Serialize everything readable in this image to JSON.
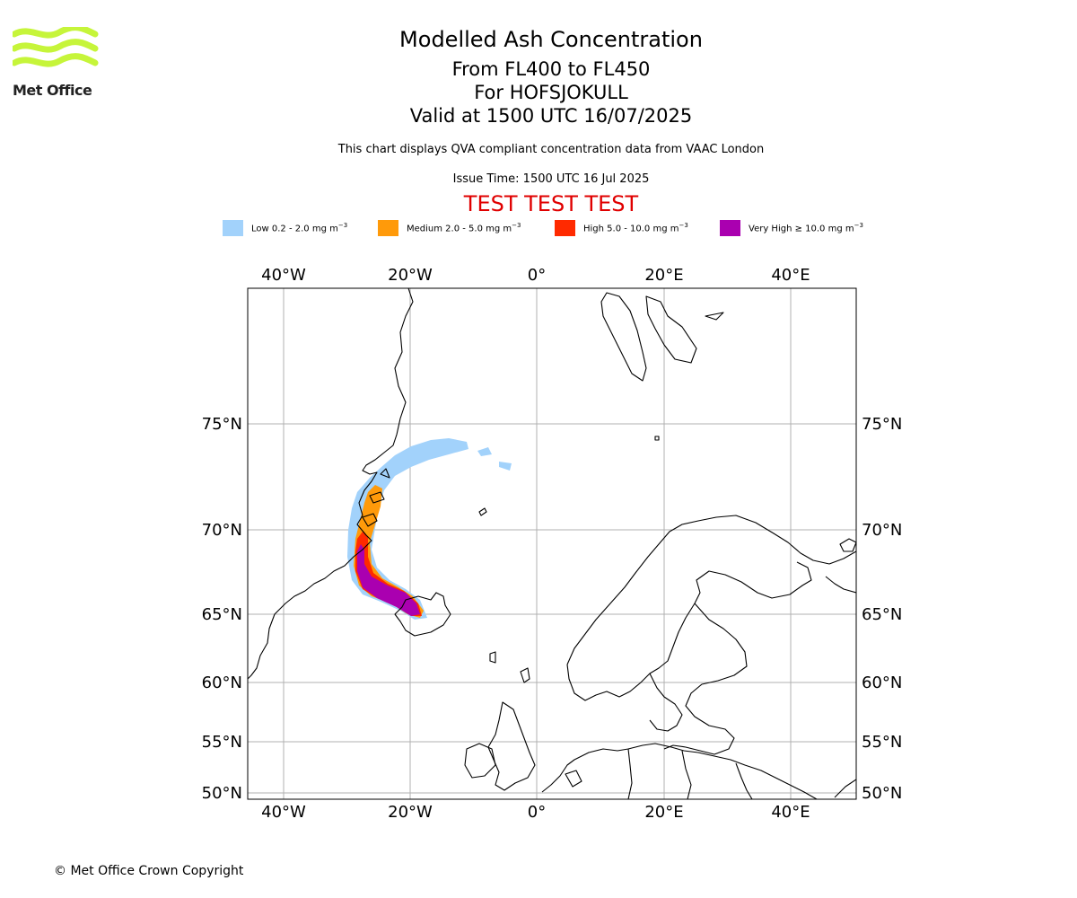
{
  "header": {
    "title": "Modelled Ash Concentration",
    "line2": "From FL400 to FL450",
    "line3": "For HOFSJOKULL",
    "line4": "Valid at 1500 UTC 16/07/2025",
    "description": "This chart displays QVA compliant concentration data from VAAC London",
    "issue_time": "Issue Time: 1500 UTC 16 Jul 2025",
    "test_banner": "TEST TEST TEST"
  },
  "logo": {
    "text": "Met Office",
    "icon": "met-office-waves-logo",
    "color": "#c6f53a"
  },
  "legend": [
    {
      "label": "Low 0.2 - 2.0 mg m",
      "color": "#a2d2fb"
    },
    {
      "label": "Medium 2.0 - 5.0 mg m",
      "color": "#ff9a0a"
    },
    {
      "label": "High 5.0 - 10.0 mg m",
      "color": "#ff2a00"
    },
    {
      "label": "Very High ≥ 10.0 mg m",
      "color": "#aa00b0"
    }
  ],
  "legend_unit_exponent": "−3",
  "map": {
    "lon_labels": [
      "40°W",
      "20°W",
      "0°",
      "20°E",
      "40°E"
    ],
    "lat_labels": [
      "75°N",
      "70°N",
      "65°N",
      "60°N",
      "55°N",
      "50°N"
    ],
    "extent": {
      "lon": [
        -45,
        50
      ],
      "lat": [
        49,
        81
      ]
    },
    "gridlines": true
  },
  "footer": {
    "copyright": "© Met Office Crown Copyright"
  }
}
